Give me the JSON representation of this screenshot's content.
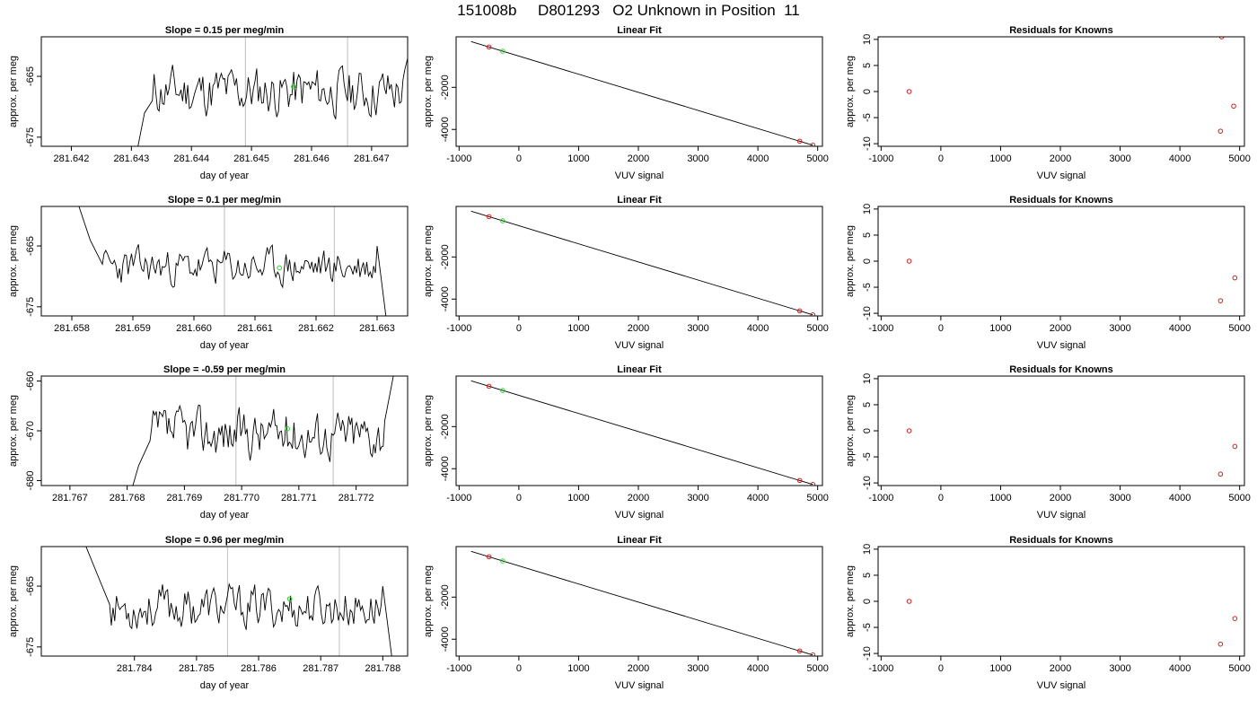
{
  "figure": {
    "title": "151008b     D801293   O2 Unknown in Position  11"
  },
  "chart_data": [
    {
      "type": "line",
      "row": 0,
      "col": 0,
      "title": "Slope =  0.15  per meg/min",
      "xlabel": "day of year",
      "ylabel": "approx. per meg",
      "xlim": [
        281.6415,
        281.6476
      ],
      "ylim": [
        -676.5,
        -658.5
      ],
      "xticks": [
        281.642,
        281.643,
        281.644,
        281.645,
        281.646,
        281.647
      ],
      "xtick_labels": [
        "281.642",
        "281.643",
        "281.644",
        "281.645",
        "281.646",
        "281.647"
      ],
      "yticks": [
        -665,
        -675
      ],
      "ytick_labels": [
        "-665",
        "-675"
      ],
      "vlines": [
        281.6449,
        281.6466
      ],
      "trace": {
        "start": 281.6431,
        "end": 281.6477,
        "n": 150,
        "mean": -667.5,
        "amp": 2.2,
        "seed": 11,
        "head": [
          [
            281.6431,
            -677
          ],
          [
            281.64322,
            -671
          ],
          [
            281.64335,
            -669
          ]
        ],
        "tail": [
          [
            281.64755,
            -664
          ],
          [
            281.6477,
            -658
          ]
        ]
      },
      "marker": {
        "x": 281.6457,
        "y": -666.7,
        "color": "#22dd22"
      }
    },
    {
      "type": "scatter",
      "row": 0,
      "col": 1,
      "title": "Linear Fit",
      "xlabel": "VUV signal",
      "ylabel": "approx. per meg",
      "xlim": [
        -1050,
        5080
      ],
      "ylim": [
        -4800,
        400
      ],
      "xticks": [
        -1000,
        0,
        1000,
        2000,
        3000,
        4000,
        5000
      ],
      "xtick_labels": [
        "-1000",
        "0",
        "1000",
        "2000",
        "3000",
        "4000",
        "5000"
      ],
      "yticks": [
        -2000,
        -4000
      ],
      "ytick_labels": [
        "-2000",
        "-4000"
      ],
      "fit_line": [
        [
          -800,
          173
        ],
        [
          4920,
          -4750
        ]
      ],
      "points": [
        [
          -500,
          -85,
          "#cc2222"
        ],
        [
          -270,
          -285,
          "#22dd22"
        ],
        [
          4700,
          -4560,
          "#cc2222"
        ],
        [
          4920,
          -4750,
          "#cc2222"
        ]
      ]
    },
    {
      "type": "scatter",
      "row": 0,
      "col": 2,
      "title": "Residuals for Knowns",
      "xlabel": "VUV signal",
      "ylabel": "approx. per meg",
      "xlim": [
        -1050,
        5080
      ],
      "ylim": [
        -10.5,
        10.5
      ],
      "xticks": [
        -1000,
        0,
        1000,
        2000,
        3000,
        4000,
        5000
      ],
      "xtick_labels": [
        "-1000",
        "0",
        "1000",
        "2000",
        "3000",
        "4000",
        "5000"
      ],
      "yticks": [
        10,
        5,
        0,
        -5,
        -10
      ],
      "ytick_labels": [
        "10",
        "5",
        "0",
        "-5",
        "-10"
      ],
      "points": [
        [
          -530,
          0,
          "#cc2222"
        ],
        [
          4700,
          10.5,
          "#cc2222"
        ],
        [
          4900,
          -2.8,
          "#cc2222"
        ],
        [
          4680,
          -7.6,
          "#cc2222"
        ]
      ]
    },
    {
      "type": "line",
      "row": 1,
      "col": 0,
      "title": "Slope =  0.1  per meg/min",
      "xlabel": "day of year",
      "ylabel": "approx. per meg",
      "xlim": [
        281.6575,
        281.6635
      ],
      "ylim": [
        -676.5,
        -658.5
      ],
      "xticks": [
        281.658,
        281.659,
        281.66,
        281.661,
        281.662,
        281.663
      ],
      "xtick_labels": [
        "281.658",
        "281.659",
        "281.660",
        "281.661",
        "281.662",
        "281.663"
      ],
      "yticks": [
        -665,
        -675
      ],
      "ytick_labels": [
        "-665",
        "-675"
      ],
      "vlines": [
        281.6605,
        281.6623
      ],
      "trace": {
        "start": 281.6581,
        "end": 281.66315,
        "n": 160,
        "mean": -668.5,
        "amp": 1.6,
        "seed": 23,
        "head": [
          [
            281.6581,
            -658
          ],
          [
            281.6583,
            -664
          ],
          [
            281.6585,
            -668
          ]
        ],
        "tail": [
          [
            281.663,
            -665
          ],
          [
            281.66315,
            -677
          ]
        ]
      },
      "marker": {
        "x": 281.6614,
        "y": -668.6,
        "color": "#22dd22"
      }
    },
    {
      "type": "scatter",
      "row": 1,
      "col": 1,
      "title": "Linear Fit",
      "xlabel": "VUV signal",
      "ylabel": "approx. per meg",
      "xlim": [
        -1050,
        5080
      ],
      "ylim": [
        -4800,
        400
      ],
      "xticks": [
        -1000,
        0,
        1000,
        2000,
        3000,
        4000,
        5000
      ],
      "xtick_labels": [
        "-1000",
        "0",
        "1000",
        "2000",
        "3000",
        "4000",
        "5000"
      ],
      "yticks": [
        -2000,
        -4000
      ],
      "ytick_labels": [
        "-2000",
        "-4000"
      ],
      "fit_line": [
        [
          -800,
          173
        ],
        [
          4920,
          -4750
        ]
      ],
      "points": [
        [
          -500,
          -85,
          "#cc2222"
        ],
        [
          -270,
          -285,
          "#22dd22"
        ],
        [
          4700,
          -4560,
          "#cc2222"
        ],
        [
          4920,
          -4750,
          "#cc2222"
        ]
      ]
    },
    {
      "type": "scatter",
      "row": 1,
      "col": 2,
      "title": "Residuals for Knowns",
      "xlabel": "VUV signal",
      "ylabel": "approx. per meg",
      "xlim": [
        -1050,
        5080
      ],
      "ylim": [
        -10.5,
        10.5
      ],
      "xticks": [
        -1000,
        0,
        1000,
        2000,
        3000,
        4000,
        5000
      ],
      "xtick_labels": [
        "-1000",
        "0",
        "1000",
        "2000",
        "3000",
        "4000",
        "5000"
      ],
      "yticks": [
        10,
        5,
        0,
        -5,
        -10
      ],
      "ytick_labels": [
        "10",
        "5",
        "0",
        "-5",
        "-10"
      ],
      "points": [
        [
          -530,
          0,
          "#cc2222"
        ],
        [
          4920,
          -3.2,
          "#cc2222"
        ],
        [
          4680,
          -7.6,
          "#cc2222"
        ]
      ]
    },
    {
      "type": "line",
      "row": 2,
      "col": 0,
      "title": "Slope =  -0.59  per meg/min",
      "xlabel": "day of year",
      "ylabel": "approx. per meg",
      "xlim": [
        281.7665,
        281.7729
      ],
      "ylim": [
        -681,
        -659
      ],
      "xticks": [
        281.767,
        281.768,
        281.769,
        281.77,
        281.771,
        281.772
      ],
      "xtick_labels": [
        "281.767",
        "281.768",
        "281.769",
        "281.770",
        "281.771",
        "281.772"
      ],
      "yticks": [
        -660,
        -670,
        -680
      ],
      "ytick_labels": [
        "-660",
        "-670",
        "-680"
      ],
      "vlines": [
        281.7699,
        281.7716
      ],
      "trace": {
        "start": 281.7681,
        "end": 281.77265,
        "n": 150,
        "mean": -670.5,
        "amp": 2.6,
        "seed": 37,
        "head": [
          [
            281.7681,
            -681
          ],
          [
            281.7682,
            -677
          ],
          [
            281.7684,
            -672
          ]
        ],
        "tail": [
          [
            281.7725,
            -668
          ],
          [
            281.77265,
            -659
          ]
        ]
      },
      "marker": {
        "x": 281.7708,
        "y": -669.6,
        "color": "#22dd22"
      }
    },
    {
      "type": "scatter",
      "row": 2,
      "col": 1,
      "title": "Linear Fit",
      "xlabel": "VUV signal",
      "ylabel": "approx. per meg",
      "xlim": [
        -1050,
        5080
      ],
      "ylim": [
        -4800,
        400
      ],
      "xticks": [
        -1000,
        0,
        1000,
        2000,
        3000,
        4000,
        5000
      ],
      "xtick_labels": [
        "-1000",
        "0",
        "1000",
        "2000",
        "3000",
        "4000",
        "5000"
      ],
      "yticks": [
        -2000,
        -4000
      ],
      "ytick_labels": [
        "-2000",
        "-4000"
      ],
      "fit_line": [
        [
          -800,
          173
        ],
        [
          4920,
          -4750
        ]
      ],
      "points": [
        [
          -500,
          -85,
          "#cc2222"
        ],
        [
          -270,
          -285,
          "#22dd22"
        ],
        [
          4700,
          -4560,
          "#cc2222"
        ],
        [
          4920,
          -4750,
          "#cc2222"
        ]
      ]
    },
    {
      "type": "scatter",
      "row": 2,
      "col": 2,
      "title": "Residuals for Knowns",
      "xlabel": "VUV signal",
      "ylabel": "approx. per meg",
      "xlim": [
        -1050,
        5080
      ],
      "ylim": [
        -10.5,
        10.5
      ],
      "xticks": [
        -1000,
        0,
        1000,
        2000,
        3000,
        4000,
        5000
      ],
      "xtick_labels": [
        "-1000",
        "0",
        "1000",
        "2000",
        "3000",
        "4000",
        "5000"
      ],
      "yticks": [
        10,
        5,
        0,
        -5,
        -10
      ],
      "ytick_labels": [
        "10",
        "5",
        "0",
        "-5",
        "-10"
      ],
      "points": [
        [
          -530,
          0,
          "#cc2222"
        ],
        [
          4920,
          -3.0,
          "#cc2222"
        ],
        [
          4680,
          -8.3,
          "#cc2222"
        ]
      ]
    },
    {
      "type": "line",
      "row": 3,
      "col": 0,
      "title": "Slope =  0.96  per meg/min",
      "xlabel": "day of year",
      "ylabel": "approx. per meg",
      "xlim": [
        281.7825,
        281.7884
      ],
      "ylim": [
        -676.5,
        -658.5
      ],
      "xticks": [
        281.784,
        281.785,
        281.786,
        281.787,
        281.788
      ],
      "xtick_labels": [
        "281.784",
        "281.785",
        "281.786",
        "281.787",
        "281.788"
      ],
      "yticks": [
        -665,
        -675
      ],
      "ytick_labels": [
        "-665",
        "-675"
      ],
      "vlines": [
        281.7855,
        281.7873
      ],
      "trace": {
        "start": 281.7832,
        "end": 281.78815,
        "n": 160,
        "mean": -668.5,
        "amp": 1.9,
        "seed": 53,
        "head": [
          [
            281.7832,
            -658
          ],
          [
            281.7834,
            -663
          ],
          [
            281.7836,
            -668
          ]
        ],
        "tail": [
          [
            281.788,
            -665
          ],
          [
            281.78815,
            -677
          ]
        ]
      },
      "marker": {
        "x": 281.7865,
        "y": -667.1,
        "color": "#22dd22"
      }
    },
    {
      "type": "scatter",
      "row": 3,
      "col": 1,
      "title": "Linear Fit",
      "xlabel": "VUV signal",
      "ylabel": "approx. per meg",
      "xlim": [
        -1050,
        5080
      ],
      "ylim": [
        -4800,
        400
      ],
      "xticks": [
        -1000,
        0,
        1000,
        2000,
        3000,
        4000,
        5000
      ],
      "xtick_labels": [
        "-1000",
        "0",
        "1000",
        "2000",
        "3000",
        "4000",
        "5000"
      ],
      "yticks": [
        -2000,
        -4000
      ],
      "ytick_labels": [
        "-2000",
        "-4000"
      ],
      "fit_line": [
        [
          -800,
          173
        ],
        [
          4920,
          -4750
        ]
      ],
      "points": [
        [
          -500,
          -85,
          "#cc2222"
        ],
        [
          -270,
          -285,
          "#22dd22"
        ],
        [
          4700,
          -4560,
          "#cc2222"
        ],
        [
          4920,
          -4750,
          "#cc2222"
        ]
      ]
    },
    {
      "type": "scatter",
      "row": 3,
      "col": 2,
      "title": "Residuals for Knowns",
      "xlabel": "VUV signal",
      "ylabel": "approx. per meg",
      "xlim": [
        -1050,
        5080
      ],
      "ylim": [
        -10.5,
        10.5
      ],
      "xticks": [
        -1000,
        0,
        1000,
        2000,
        3000,
        4000,
        5000
      ],
      "xtick_labels": [
        "-1000",
        "0",
        "1000",
        "2000",
        "3000",
        "4000",
        "5000"
      ],
      "yticks": [
        10,
        5,
        0,
        -5,
        -10
      ],
      "ytick_labels": [
        "10",
        "5",
        "0",
        "-5",
        "-10"
      ],
      "points": [
        [
          -530,
          0,
          "#cc2222"
        ],
        [
          4920,
          -3.3,
          "#cc2222"
        ],
        [
          4680,
          -8.2,
          "#cc2222"
        ]
      ]
    }
  ]
}
